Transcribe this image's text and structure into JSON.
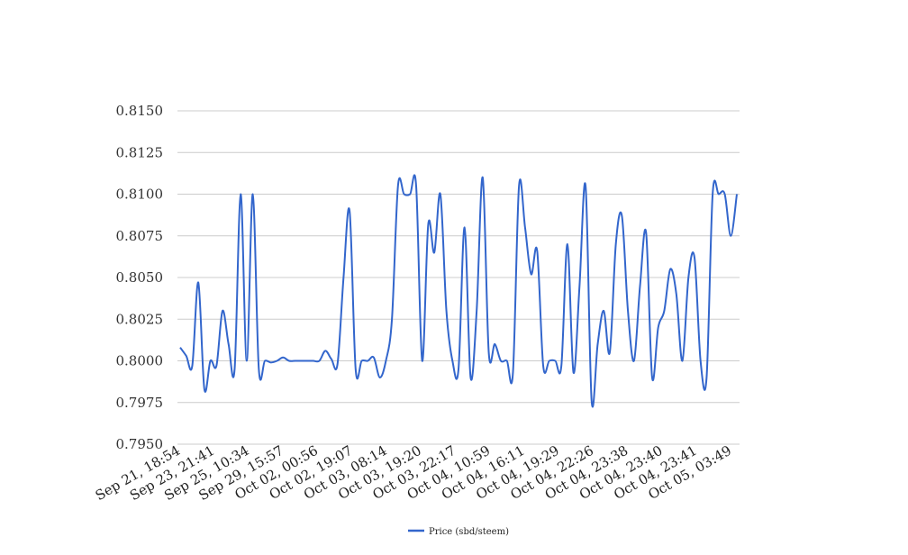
{
  "chart_data": {
    "type": "line",
    "title": "",
    "xlabel": "",
    "ylabel": "",
    "ylim": [
      0.795,
      0.815
    ],
    "yticks": [
      "0.7950",
      "0.7975",
      "0.8000",
      "0.8025",
      "0.8050",
      "0.8075",
      "0.8100",
      "0.8125",
      "0.8150"
    ],
    "xticks": [
      "Sep 21, 18:54",
      "Sep 23, 21:41",
      "Sep 25, 10:34",
      "Sep 29, 15:57",
      "Oct 02, 00:56",
      "Oct 02, 19:07",
      "Oct 03, 08:14",
      "Oct 03, 19:20",
      "Oct 03, 22:17",
      "Oct 04, 10:59",
      "Oct 04, 16:11",
      "Oct 04, 19:29",
      "Oct 04, 22:26",
      "Oct 04, 23:38",
      "Oct 04, 23:40",
      "Oct 04, 23:41",
      "Oct 05, 03:49"
    ],
    "grid": true,
    "legend_position": "bottom",
    "series": [
      {
        "name": "Price (sbd/steem)",
        "color": "#3366cc",
        "values": [
          0.8008,
          0.8003,
          0.7997,
          0.8047,
          0.7983,
          0.8,
          0.7997,
          0.803,
          0.801,
          0.7995,
          0.81,
          0.8,
          0.81,
          0.7995,
          0.8,
          0.7999,
          0.8,
          0.8002,
          0.8,
          0.8,
          0.8,
          0.8,
          0.8,
          0.8,
          0.8006,
          0.8001,
          0.7998,
          0.805,
          0.809,
          0.7995,
          0.8,
          0.8,
          0.8002,
          0.799,
          0.8,
          0.8025,
          0.8105,
          0.81,
          0.81,
          0.8105,
          0.8,
          0.8082,
          0.8065,
          0.81,
          0.803,
          0.8,
          0.7995,
          0.808,
          0.799,
          0.803,
          0.811,
          0.8005,
          0.801,
          0.8,
          0.8,
          0.7993,
          0.8105,
          0.808,
          0.8052,
          0.8066,
          0.7997,
          0.8,
          0.8,
          0.7997,
          0.807,
          0.7993,
          0.8045,
          0.8105,
          0.7976,
          0.801,
          0.803,
          0.8005,
          0.807,
          0.8087,
          0.803,
          0.8,
          0.8045,
          0.8077,
          0.799,
          0.802,
          0.803,
          0.8055,
          0.804,
          0.8,
          0.805,
          0.8062,
          0.8,
          0.799,
          0.81,
          0.81,
          0.81,
          0.8075,
          0.81
        ]
      }
    ]
  }
}
